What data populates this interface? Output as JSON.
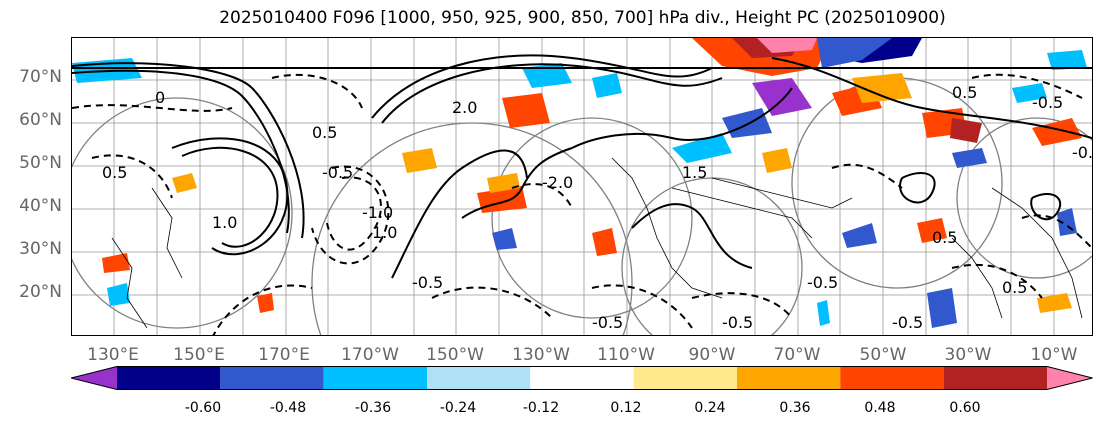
{
  "title": "2025010400 F096 [1000, 950, 925, 900, 850, 700] hPa div., Height PC (2025010900)",
  "lat_labels": [
    "70°N",
    "60°N",
    "50°N",
    "40°N",
    "30°N",
    "20°N"
  ],
  "lon_labels": [
    "130°E",
    "150°E",
    "170°E",
    "170°W",
    "150°W",
    "130°W",
    "110°W",
    "90°W",
    "70°W",
    "50°W",
    "30°W",
    "10°W"
  ],
  "contour_labels": [
    "0",
    "0.5",
    "1.0",
    "-0.5",
    "1.0",
    "-0.5",
    "-1.0",
    "2.0",
    "0.5",
    "-2.0",
    "-0.5",
    "1.5",
    "-0.5",
    "0.5",
    "-0.5",
    "0.5",
    "-0.5",
    "-0.5",
    "-0.5",
    "0.5"
  ],
  "colorbar": {
    "extend": "both",
    "colors": [
      "#9932cc",
      "#00008b",
      "#3158cc",
      "#00bfff",
      "#b0e0f8",
      "#ffffff",
      "#ffe98a",
      "#ffa500",
      "#ff4500",
      "#b22222",
      "#ff82ab"
    ],
    "tick_labels": [
      "-0.60",
      "-0.48",
      "-0.36",
      "-0.24",
      "-0.12",
      "0.12",
      "0.24",
      "0.36",
      "0.48",
      "0.60"
    ]
  },
  "colors": {
    "grid": "#999999",
    "circles": "#808080",
    "contour": "#000000",
    "axis_label": "#666666"
  }
}
